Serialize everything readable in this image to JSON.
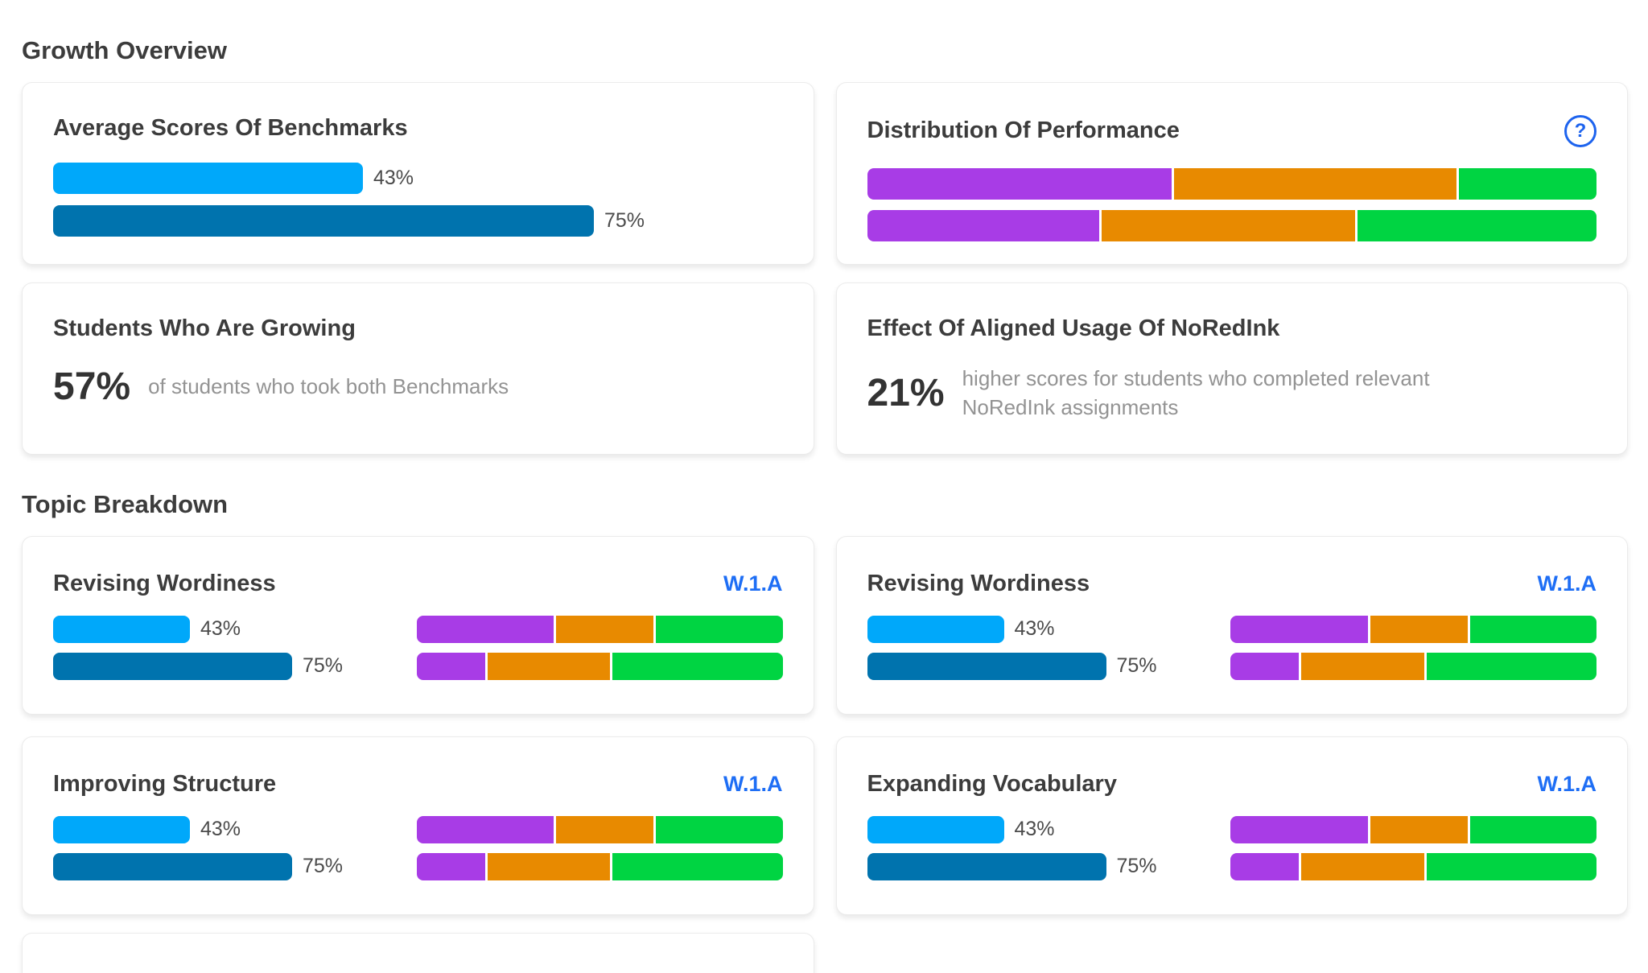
{
  "colors": {
    "bright_blue": "#00a8fa",
    "dark_blue": "#0073ae",
    "purple": "#a83ce6",
    "orange": "#e88a00",
    "green": "#00d442",
    "link_blue": "#1e6ef5",
    "help_blue": "#1d63ee"
  },
  "growth_overview": {
    "heading": "Growth Overview",
    "benchmarks_card": {
      "title": "Average Scores Of Benchmarks",
      "bars": [
        {
          "pct": 43,
          "label": "43%",
          "color": "bright_blue"
        },
        {
          "pct": 75,
          "label": "75%",
          "color": "dark_blue"
        }
      ]
    },
    "distribution_card": {
      "title": "Distribution Of Performance",
      "help_icon": {
        "glyph": "?"
      },
      "rows": [
        [
          {
            "color": "purple",
            "pct": 42
          },
          {
            "color": "orange",
            "pct": 39
          },
          {
            "color": "green",
            "pct": 19
          }
        ],
        [
          {
            "color": "purple",
            "pct": 32
          },
          {
            "color": "orange",
            "pct": 35
          },
          {
            "color": "green",
            "pct": 33
          }
        ]
      ]
    },
    "growing_card": {
      "title": "Students Who Are Growing",
      "stat": "57%",
      "description": "of students who took both Benchmarks"
    },
    "effect_card": {
      "title": "Effect Of Aligned Usage Of NoRedInk",
      "stat": "21%",
      "description": "higher scores for students who completed relevant NoRedInk assignments"
    }
  },
  "topic_breakdown": {
    "heading": "Topic Breakdown",
    "cards": [
      {
        "title": "Revising Wordiness",
        "standard": "W.1.A",
        "benchmark_bars": [
          {
            "pct": 43,
            "label": "43%",
            "color": "bright_blue"
          },
          {
            "pct": 75,
            "label": "75%",
            "color": "dark_blue"
          }
        ],
        "distribution_rows": [
          [
            {
              "color": "purple",
              "pct": 38
            },
            {
              "color": "orange",
              "pct": 27
            },
            {
              "color": "green",
              "pct": 35
            }
          ],
          [
            {
              "color": "purple",
              "pct": 19
            },
            {
              "color": "orange",
              "pct": 34
            },
            {
              "color": "green",
              "pct": 47
            }
          ]
        ]
      },
      {
        "title": "Revising Wordiness",
        "standard": "W.1.A",
        "benchmark_bars": [
          {
            "pct": 43,
            "label": "43%",
            "color": "bright_blue"
          },
          {
            "pct": 75,
            "label": "75%",
            "color": "dark_blue"
          }
        ],
        "distribution_rows": [
          [
            {
              "color": "purple",
              "pct": 38
            },
            {
              "color": "orange",
              "pct": 27
            },
            {
              "color": "green",
              "pct": 35
            }
          ],
          [
            {
              "color": "purple",
              "pct": 19
            },
            {
              "color": "orange",
              "pct": 34
            },
            {
              "color": "green",
              "pct": 47
            }
          ]
        ]
      },
      {
        "title": "Improving Structure",
        "standard": "W.1.A",
        "benchmark_bars": [
          {
            "pct": 43,
            "label": "43%",
            "color": "bright_blue"
          },
          {
            "pct": 75,
            "label": "75%",
            "color": "dark_blue"
          }
        ],
        "distribution_rows": [
          [
            {
              "color": "purple",
              "pct": 38
            },
            {
              "color": "orange",
              "pct": 27
            },
            {
              "color": "green",
              "pct": 35
            }
          ],
          [
            {
              "color": "purple",
              "pct": 19
            },
            {
              "color": "orange",
              "pct": 34
            },
            {
              "color": "green",
              "pct": 47
            }
          ]
        ]
      },
      {
        "title": "Expanding Vocabulary",
        "standard": "W.1.A",
        "benchmark_bars": [
          {
            "pct": 43,
            "label": "43%",
            "color": "bright_blue"
          },
          {
            "pct": 75,
            "label": "75%",
            "color": "dark_blue"
          }
        ],
        "distribution_rows": [
          [
            {
              "color": "purple",
              "pct": 38
            },
            {
              "color": "orange",
              "pct": 27
            },
            {
              "color": "green",
              "pct": 35
            }
          ],
          [
            {
              "color": "purple",
              "pct": 19
            },
            {
              "color": "orange",
              "pct": 34
            },
            {
              "color": "green",
              "pct": 47
            }
          ]
        ]
      }
    ]
  }
}
